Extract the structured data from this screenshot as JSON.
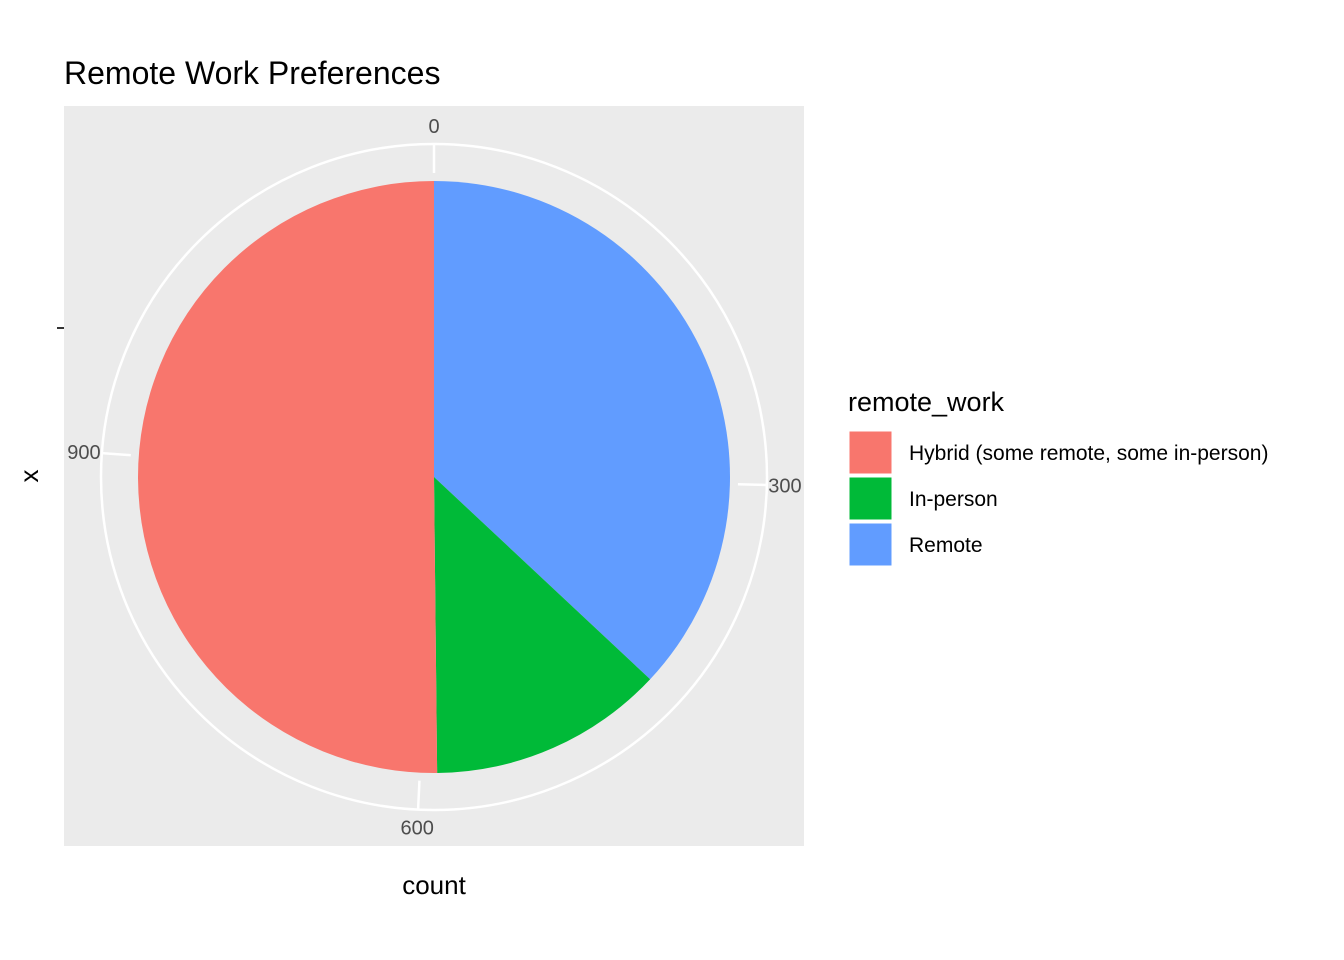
{
  "chart_data": {
    "type": "pie",
    "title": "Remote Work Preferences",
    "xlabel": "count",
    "ylabel": "x",
    "legend_title": "remote_work",
    "legend_position": "right",
    "radial_ticks": [
      0,
      300,
      600,
      900
    ],
    "radial_max": 1182,
    "categories": [
      "Hybrid (some remote, some in-person)",
      "In-person",
      "Remote"
    ],
    "stack_order": [
      "Remote",
      "In-person",
      "Hybrid (some remote, some in-person)"
    ],
    "values": [
      593,
      152,
      437
    ],
    "colors": {
      "Hybrid (some remote, some in-person)": "#F8766D",
      "In-person": "#00BA38",
      "Remote": "#619CFF"
    },
    "panel_background": "#EBEBEB",
    "grid": true
  }
}
